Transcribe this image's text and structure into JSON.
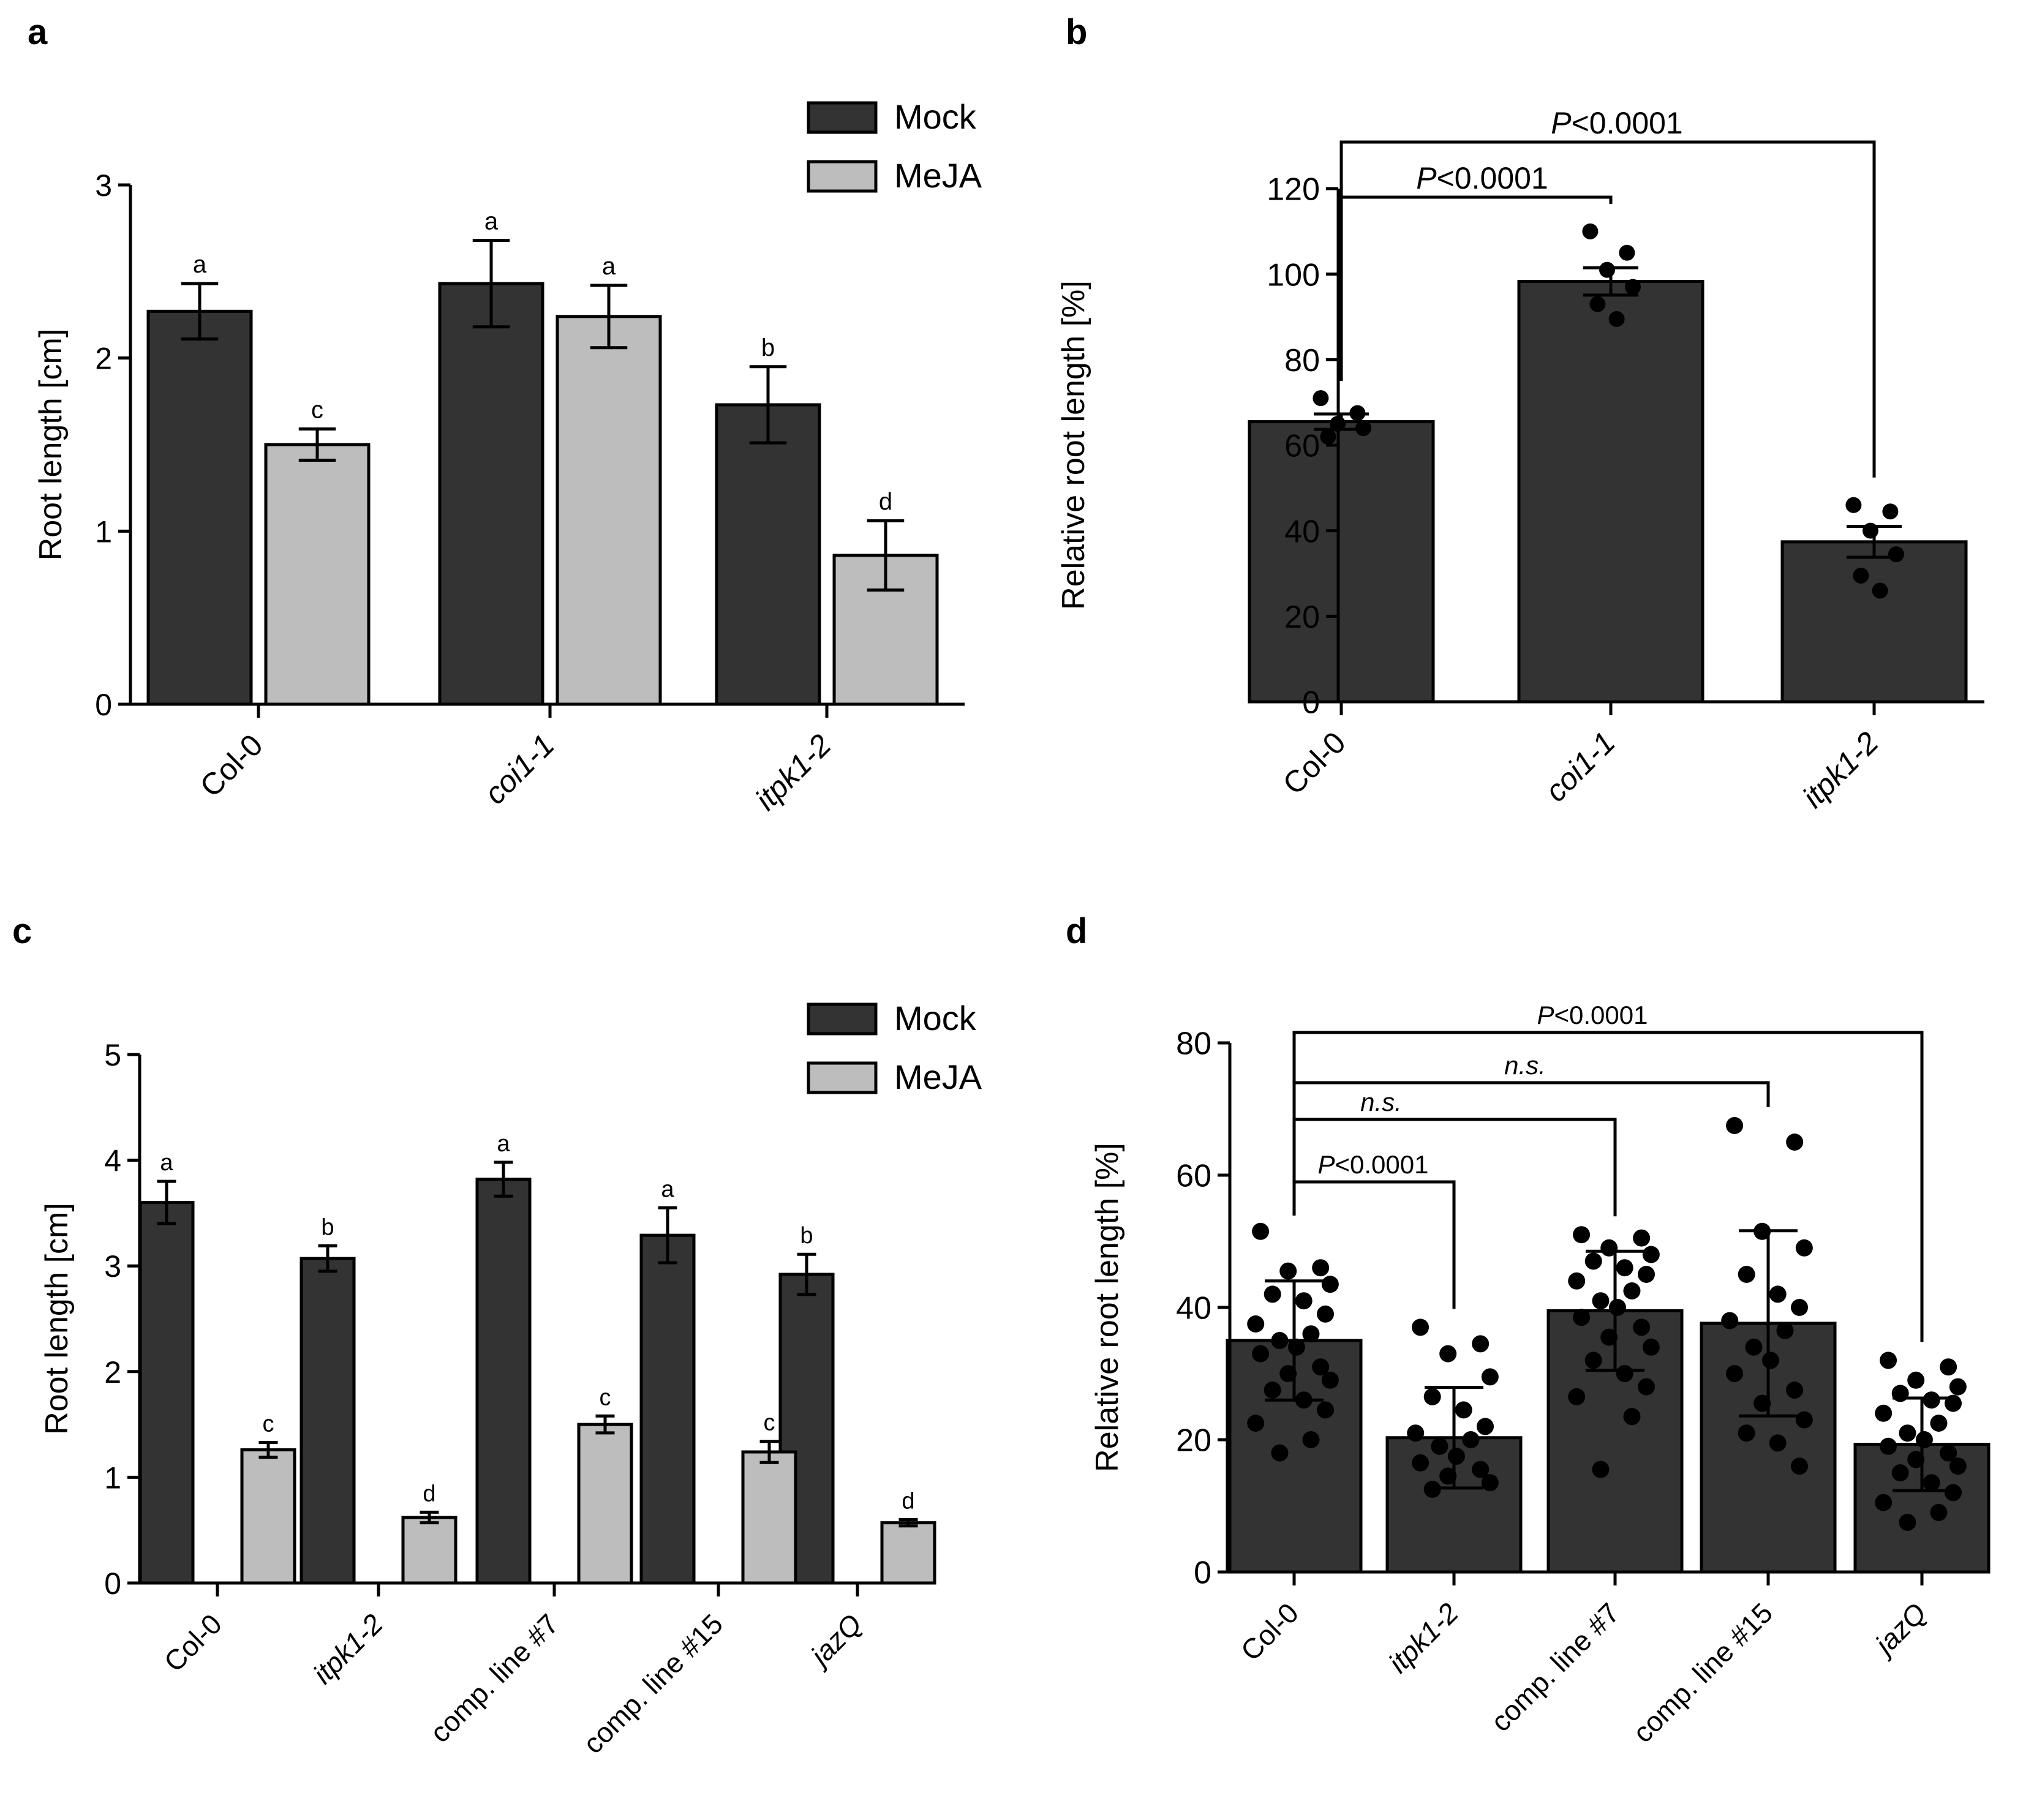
{
  "figure": {
    "background": "#ffffff",
    "dark_bar": "#333333",
    "light_bar": "#bdbdbd",
    "point": "#000000"
  },
  "chart_data": [
    {
      "panel": "a",
      "type": "bar",
      "categories": [
        "Col-0",
        "coi1-1",
        "itpk1-2"
      ],
      "italic_categories": [
        false,
        true,
        true
      ],
      "series": [
        {
          "name": "Mock",
          "color": "#333333",
          "values": [
            2.27,
            2.43,
            1.73
          ],
          "errors": [
            0.16,
            0.25,
            0.22
          ],
          "letters": [
            "a",
            "a",
            "b"
          ]
        },
        {
          "name": "MeJA",
          "color": "#bdbdbd",
          "values": [
            1.5,
            2.24,
            0.86
          ],
          "errors": [
            0.09,
            0.18,
            0.2
          ],
          "letters": [
            "c",
            "a",
            "d"
          ]
        }
      ],
      "ylabel": "Root length [cm]",
      "xlabel": "",
      "ylim": [
        0,
        3
      ],
      "yticks": [
        0,
        1,
        2,
        3
      ],
      "legend": "top-right"
    },
    {
      "panel": "b",
      "type": "bar",
      "categories": [
        "Col-0",
        "coi1-1",
        "itpk1-2"
      ],
      "italic_categories": [
        false,
        true,
        true
      ],
      "values": [
        65.5,
        98.3,
        37.4
      ],
      "errors": [
        1.8,
        3.2,
        3.6
      ],
      "points": [
        [
          71.0,
          67.5,
          65.0,
          64.0,
          62.0
        ],
        [
          110.0,
          105.0,
          101.0,
          97.0,
          93.0,
          89.5
        ],
        [
          46.0,
          44.5,
          40.0,
          34.5,
          29.5,
          26.0
        ]
      ],
      "ylabel": "Relative root length [%]",
      "xlabel": "",
      "ylim": [
        0,
        120
      ],
      "yticks": [
        0,
        20,
        40,
        60,
        80,
        100,
        120
      ],
      "comparisons": [
        {
          "from": 0,
          "to": 1,
          "label": "P<0.0001"
        },
        {
          "from": 0,
          "to": 2,
          "label": "P<0.0001"
        }
      ]
    },
    {
      "panel": "c",
      "type": "bar",
      "categories": [
        "Col-0",
        "itpk1-2",
        "comp. line #7",
        "comp. line #15",
        "jazQ"
      ],
      "italic_categories": [
        false,
        true,
        false,
        false,
        true
      ],
      "series": [
        {
          "name": "Mock",
          "color": "#333333",
          "values": [
            3.6,
            3.07,
            3.82,
            3.29,
            2.92
          ],
          "errors": [
            0.2,
            0.12,
            0.16,
            0.26,
            0.19
          ],
          "letters": [
            "a",
            "b",
            "a",
            "a",
            "b"
          ]
        },
        {
          "name": "MeJA",
          "color": "#bdbdbd",
          "values": [
            1.26,
            0.62,
            1.5,
            1.24,
            0.57
          ],
          "errors": [
            0.07,
            0.05,
            0.08,
            0.1,
            0.03
          ],
          "letters": [
            "c",
            "d",
            "c",
            "c",
            "d"
          ]
        }
      ],
      "ylabel": "Root length [cm]",
      "xlabel": "",
      "ylim": [
        0,
        5
      ],
      "yticks": [
        0,
        1,
        2,
        3,
        4,
        5
      ],
      "legend": "top-right"
    },
    {
      "panel": "d",
      "type": "bar",
      "categories": [
        "Col-0",
        "itpk1-2",
        "comp. line #7",
        "comp. line #15",
        "jazQ"
      ],
      "italic_categories": [
        false,
        true,
        false,
        false,
        true
      ],
      "values": [
        35.0,
        20.3,
        39.5,
        37.6,
        19.3
      ],
      "errors": [
        9.0,
        7.6,
        9.0,
        14.0,
        7.0
      ],
      "points": [
        [
          51.5,
          46.0,
          45.5,
          43.5,
          42.0,
          41.0,
          39.0,
          37.5,
          36.0,
          35.0,
          34.0,
          33.0,
          31.0,
          30.0,
          29.0,
          27.5,
          26.0,
          24.5,
          22.5,
          20.0,
          18.0
        ],
        [
          37.0,
          34.5,
          33.0,
          29.5,
          26.5,
          24.5,
          22.0,
          21.0,
          20.0,
          19.0,
          17.5,
          16.5,
          15.5,
          14.5,
          13.5,
          12.5
        ],
        [
          51.0,
          50.5,
          49.0,
          48.0,
          47.0,
          46.0,
          45.0,
          44.0,
          42.5,
          41.0,
          40.0,
          38.5,
          37.0,
          35.5,
          34.0,
          32.0,
          30.0,
          28.0,
          26.5,
          23.5,
          15.5
        ],
        [
          67.5,
          65.0,
          51.5,
          49.0,
          45.0,
          42.0,
          40.0,
          38.0,
          36.5,
          34.0,
          32.0,
          30.0,
          27.5,
          25.5,
          23.0,
          21.0,
          19.5,
          16.0
        ],
        [
          32.0,
          31.0,
          29.0,
          28.0,
          27.0,
          26.0,
          25.5,
          24.0,
          22.5,
          21.0,
          20.0,
          19.0,
          18.0,
          17.0,
          16.0,
          15.0,
          13.5,
          12.0,
          10.5,
          9.0,
          7.5
        ]
      ],
      "ylabel": "Relative root length [%]",
      "xlabel": "",
      "ylim": [
        0,
        80
      ],
      "yticks": [
        0,
        20,
        40,
        60,
        80
      ],
      "comparisons": [
        {
          "from": 0,
          "to": 1,
          "label": "P<0.0001",
          "italic_p": true
        },
        {
          "from": 0,
          "to": 2,
          "label": "n.s.",
          "italic_p": false
        },
        {
          "from": 0,
          "to": 3,
          "label": "n.s.",
          "italic_p": false
        },
        {
          "from": 0,
          "to": 4,
          "label": "P<0.0001",
          "italic_p": true
        }
      ]
    }
  ],
  "panel_labels": [
    "a",
    "b",
    "c",
    "d"
  ]
}
